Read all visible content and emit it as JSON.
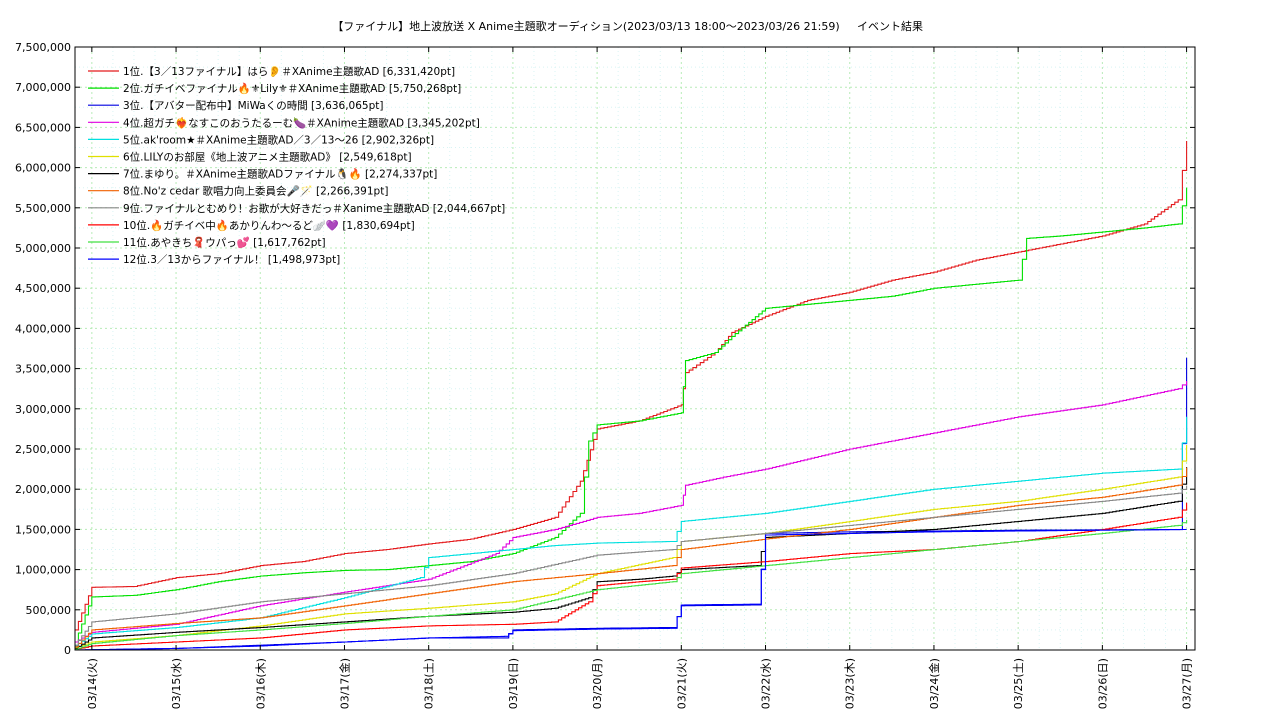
{
  "chart_data": {
    "type": "line",
    "title": "【ファイナル】地上波放送 X Anime主題歌オーディション(2023/03/13 18:00〜2023/03/26 21:59)",
    "subtitle": "イベント結果",
    "xlabel": "",
    "ylabel": "",
    "x_ticks": [
      "03/14(火)",
      "03/15(水)",
      "03/16(木)",
      "03/17(金)",
      "03/18(土)",
      "03/19(日)",
      "03/20(月)",
      "03/21(火)",
      "03/22(水)",
      "03/23(木)",
      "03/24(金)",
      "03/25(土)",
      "03/26(日)",
      "03/27(月)"
    ],
    "x_range_days": [
      -0.2,
      13.1
    ],
    "y_ticks": [
      "0",
      "500,000",
      "1,000,000",
      "1,500,000",
      "2,000,000",
      "2,500,000",
      "3,000,000",
      "3,500,000",
      "4,000,000",
      "4,500,000",
      "5,000,000",
      "5,500,000",
      "6,000,000",
      "6,500,000",
      "7,000,000",
      "7,500,000"
    ],
    "ylim": [
      0,
      7500000
    ],
    "grid": true,
    "legend_position": "top-left",
    "series": [
      {
        "name": "1位.【3／13ファイナル】はら👂＃XAnime主題歌AD [6,331,420pt]",
        "color": "#e41a1c",
        "points": [
          [
            -0.2,
            250000
          ],
          [
            0,
            780000
          ],
          [
            0.5,
            790000
          ],
          [
            1,
            900000
          ],
          [
            1.5,
            950000
          ],
          [
            2,
            1050000
          ],
          [
            2.5,
            1100000
          ],
          [
            3,
            1200000
          ],
          [
            3.5,
            1250000
          ],
          [
            4,
            1320000
          ],
          [
            4.5,
            1380000
          ],
          [
            5,
            1500000
          ],
          [
            5.5,
            1650000
          ],
          [
            5.8,
            2100000
          ],
          [
            6,
            2750000
          ],
          [
            6.5,
            2850000
          ],
          [
            7,
            3050000
          ],
          [
            7.05,
            3450000
          ],
          [
            7.4,
            3700000
          ],
          [
            7.6,
            3950000
          ],
          [
            8,
            4150000
          ],
          [
            8.5,
            4350000
          ],
          [
            9,
            4450000
          ],
          [
            9.5,
            4600000
          ],
          [
            10,
            4700000
          ],
          [
            10.5,
            4850000
          ],
          [
            11,
            4950000
          ],
          [
            11.5,
            5050000
          ],
          [
            12,
            5150000
          ],
          [
            12.5,
            5300000
          ],
          [
            12.9,
            5600000
          ],
          [
            13,
            6331420
          ]
        ]
      },
      {
        "name": "2位.ガチイベファイナル🔥⚜Lily⚜＃XAnime主題歌AD [5,750,268pt]",
        "color": "#00e000",
        "points": [
          [
            -0.2,
            100000
          ],
          [
            0,
            660000
          ],
          [
            0.5,
            680000
          ],
          [
            1,
            750000
          ],
          [
            1.5,
            850000
          ],
          [
            2,
            920000
          ],
          [
            2.5,
            960000
          ],
          [
            3,
            990000
          ],
          [
            3.5,
            1000000
          ],
          [
            4,
            1050000
          ],
          [
            4.5,
            1100000
          ],
          [
            5,
            1200000
          ],
          [
            5.5,
            1400000
          ],
          [
            5.8,
            1700000
          ],
          [
            5.9,
            2600000
          ],
          [
            6,
            2800000
          ],
          [
            6.5,
            2850000
          ],
          [
            7,
            2950000
          ],
          [
            7.05,
            3600000
          ],
          [
            7.4,
            3700000
          ],
          [
            7.6,
            3900000
          ],
          [
            8,
            4250000
          ],
          [
            8.5,
            4300000
          ],
          [
            9,
            4350000
          ],
          [
            9.5,
            4400000
          ],
          [
            10,
            4500000
          ],
          [
            10.5,
            4550000
          ],
          [
            11,
            4600000
          ],
          [
            11.1,
            5120000
          ],
          [
            11.5,
            5150000
          ],
          [
            12,
            5200000
          ],
          [
            12.5,
            5250000
          ],
          [
            12.9,
            5300000
          ],
          [
            13,
            5750268
          ]
        ]
      },
      {
        "name": "3位.【アバター配布中】MiWaくの時間 [3,636,065pt]",
        "color": "#0000e0",
        "points": [
          [
            -0.2,
            0
          ],
          [
            1,
            20000
          ],
          [
            2,
            60000
          ],
          [
            3,
            100000
          ],
          [
            4,
            150000
          ],
          [
            4.9,
            150000
          ],
          [
            5,
            250000
          ],
          [
            5.5,
            260000
          ],
          [
            6,
            270000
          ],
          [
            6.9,
            280000
          ],
          [
            7,
            550000
          ],
          [
            7.9,
            560000
          ],
          [
            8,
            1450000
          ],
          [
            8.5,
            1460000
          ],
          [
            9,
            1470000
          ],
          [
            10,
            1480000
          ],
          [
            11,
            1490000
          ],
          [
            12,
            1495000
          ],
          [
            12.9,
            1498000
          ],
          [
            13,
            3636065
          ]
        ]
      },
      {
        "name": "4位.超ガチ❤‍🔥なすこのおうたるーむ🍆＃XAnime主題歌AD [3,345,202pt]",
        "color": "#e000e0",
        "points": [
          [
            -0.2,
            100000
          ],
          [
            0,
            220000
          ],
          [
            1,
            320000
          ],
          [
            2,
            550000
          ],
          [
            3,
            720000
          ],
          [
            4,
            880000
          ],
          [
            4.8,
            1200000
          ],
          [
            5,
            1400000
          ],
          [
            5.5,
            1500000
          ],
          [
            6,
            1650000
          ],
          [
            6.5,
            1700000
          ],
          [
            7,
            1800000
          ],
          [
            7.05,
            2050000
          ],
          [
            7.5,
            2150000
          ],
          [
            8,
            2250000
          ],
          [
            9,
            2500000
          ],
          [
            10,
            2700000
          ],
          [
            11,
            2900000
          ],
          [
            12,
            3050000
          ],
          [
            12.9,
            3250000
          ],
          [
            13,
            3345202
          ]
        ]
      },
      {
        "name": "5位.ak'room★＃XAnime主題歌AD／3／13〜26 [2,902,326pt]",
        "color": "#00e0e0",
        "points": [
          [
            -0.2,
            50000
          ],
          [
            0,
            200000
          ],
          [
            1,
            280000
          ],
          [
            2,
            400000
          ],
          [
            3,
            650000
          ],
          [
            3.9,
            900000
          ],
          [
            4,
            1150000
          ],
          [
            4.5,
            1200000
          ],
          [
            5,
            1250000
          ],
          [
            5.5,
            1300000
          ],
          [
            6,
            1330000
          ],
          [
            6.9,
            1350000
          ],
          [
            7,
            1600000
          ],
          [
            8,
            1700000
          ],
          [
            9,
            1850000
          ],
          [
            10,
            2000000
          ],
          [
            11,
            2100000
          ],
          [
            12,
            2200000
          ],
          [
            12.9,
            2250000
          ],
          [
            13,
            2902326
          ]
        ]
      },
      {
        "name": "6位.LILYのお部屋《地上波アニメ主題歌AD》 [2,549,618pt]",
        "color": "#e0e000",
        "points": [
          [
            -0.2,
            30000
          ],
          [
            0,
            100000
          ],
          [
            1,
            180000
          ],
          [
            2,
            300000
          ],
          [
            3,
            450000
          ],
          [
            4,
            520000
          ],
          [
            5,
            600000
          ],
          [
            5.5,
            700000
          ],
          [
            6,
            950000
          ],
          [
            6.9,
            1150000
          ],
          [
            7,
            1350000
          ],
          [
            8,
            1450000
          ],
          [
            9,
            1600000
          ],
          [
            10,
            1750000
          ],
          [
            11,
            1850000
          ],
          [
            12,
            2000000
          ],
          [
            12.9,
            2150000
          ],
          [
            13,
            2549618
          ]
        ]
      },
      {
        "name": "7位.まゆり。＃XAnime主題歌ADファイナル🐧🔥 [2,274,337pt]",
        "color": "#000000",
        "points": [
          [
            -0.2,
            20000
          ],
          [
            0,
            150000
          ],
          [
            1,
            220000
          ],
          [
            2,
            280000
          ],
          [
            3,
            350000
          ],
          [
            4,
            420000
          ],
          [
            5,
            470000
          ],
          [
            5.5,
            520000
          ],
          [
            5.9,
            650000
          ],
          [
            6,
            850000
          ],
          [
            6.5,
            880000
          ],
          [
            6.9,
            920000
          ],
          [
            7,
            1000000
          ],
          [
            7.9,
            1050000
          ],
          [
            8,
            1400000
          ],
          [
            9,
            1450000
          ],
          [
            10,
            1500000
          ],
          [
            11,
            1600000
          ],
          [
            12,
            1700000
          ],
          [
            12.9,
            1850000
          ],
          [
            13,
            2274337
          ]
        ]
      },
      {
        "name": "8位.No'z cedar 歌唱力向上委員会🎤🪄 [2,266,391pt]",
        "color": "#f06000",
        "points": [
          [
            -0.2,
            40000
          ],
          [
            0,
            250000
          ],
          [
            1,
            330000
          ],
          [
            2,
            400000
          ],
          [
            3,
            550000
          ],
          [
            4,
            700000
          ],
          [
            5,
            850000
          ],
          [
            6,
            950000
          ],
          [
            6.9,
            1050000
          ],
          [
            7,
            1250000
          ],
          [
            8,
            1380000
          ],
          [
            9,
            1500000
          ],
          [
            10,
            1650000
          ],
          [
            11,
            1800000
          ],
          [
            12,
            1900000
          ],
          [
            12.9,
            2050000
          ],
          [
            13,
            2266391
          ]
        ]
      },
      {
        "name": "9位.ファイナルとむめり！お歌が大好きだっ＃Xanime主題歌AD [2,044,667pt]",
        "color": "#888888",
        "points": [
          [
            -0.2,
            60000
          ],
          [
            0,
            350000
          ],
          [
            1,
            450000
          ],
          [
            2,
            600000
          ],
          [
            3,
            700000
          ],
          [
            4,
            800000
          ],
          [
            5,
            950000
          ],
          [
            6,
            1180000
          ],
          [
            6.9,
            1250000
          ],
          [
            7,
            1350000
          ],
          [
            8,
            1450000
          ],
          [
            9,
            1550000
          ],
          [
            10,
            1650000
          ],
          [
            11,
            1750000
          ],
          [
            12,
            1850000
          ],
          [
            12.9,
            1950000
          ],
          [
            13,
            2044667
          ]
        ]
      },
      {
        "name": "10位.🔥ガチイベ中🔥あかりんわ〜るど🪽💜 [1,830,694pt]",
        "color": "#ff0000",
        "points": [
          [
            -0.2,
            10000
          ],
          [
            0,
            50000
          ],
          [
            1,
            100000
          ],
          [
            2,
            150000
          ],
          [
            3,
            250000
          ],
          [
            4,
            300000
          ],
          [
            5,
            320000
          ],
          [
            5.5,
            350000
          ],
          [
            5.9,
            600000
          ],
          [
            6,
            800000
          ],
          [
            6.5,
            850000
          ],
          [
            6.9,
            880000
          ],
          [
            7,
            1020000
          ],
          [
            8,
            1100000
          ],
          [
            9,
            1200000
          ],
          [
            10,
            1250000
          ],
          [
            11,
            1350000
          ],
          [
            12,
            1500000
          ],
          [
            12.9,
            1650000
          ],
          [
            13,
            1830694
          ]
        ]
      },
      {
        "name": "11位.あやきち🧣ウパっ💕 [1,617,762pt]",
        "color": "#40e040",
        "points": [
          [
            -0.2,
            10000
          ],
          [
            0,
            80000
          ],
          [
            1,
            180000
          ],
          [
            2,
            250000
          ],
          [
            3,
            330000
          ],
          [
            4,
            420000
          ],
          [
            5,
            500000
          ],
          [
            6,
            750000
          ],
          [
            6.9,
            850000
          ],
          [
            7,
            950000
          ],
          [
            8,
            1050000
          ],
          [
            9,
            1150000
          ],
          [
            10,
            1250000
          ],
          [
            11,
            1350000
          ],
          [
            12,
            1450000
          ],
          [
            12.9,
            1550000
          ],
          [
            13,
            1617762
          ]
        ]
      },
      {
        "name": "12位.3／13からファイナル！ [1,498,973pt]",
        "color": "#0000ff",
        "points": [
          [
            -0.2,
            0
          ],
          [
            1,
            20000
          ],
          [
            2,
            50000
          ],
          [
            3,
            100000
          ],
          [
            4,
            150000
          ],
          [
            4.9,
            170000
          ],
          [
            5,
            240000
          ],
          [
            6,
            260000
          ],
          [
            6.9,
            270000
          ],
          [
            7,
            560000
          ],
          [
            7.9,
            570000
          ],
          [
            8,
            1430000
          ],
          [
            9,
            1450000
          ],
          [
            10,
            1470000
          ],
          [
            11,
            1480000
          ],
          [
            12,
            1490000
          ],
          [
            13,
            1498973
          ]
        ]
      }
    ]
  }
}
